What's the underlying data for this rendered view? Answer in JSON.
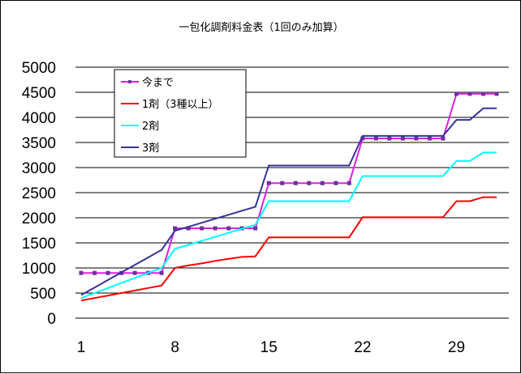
{
  "chart_data": {
    "type": "line",
    "title": "一包化調剤料金表（1回のみ加算）",
    "xlabel": "",
    "ylabel": "",
    "ylim": [
      0,
      5000
    ],
    "yticks": [
      0,
      500,
      1000,
      1500,
      2000,
      2500,
      3000,
      3500,
      4000,
      4500,
      5000
    ],
    "xlim": [
      1,
      32
    ],
    "xticks": [
      1,
      8,
      15,
      22,
      29
    ],
    "grid": "horizontal",
    "legend_position": "top-left",
    "x": [
      1,
      2,
      3,
      4,
      5,
      6,
      7,
      8,
      9,
      10,
      11,
      12,
      13,
      14,
      15,
      16,
      17,
      18,
      19,
      20,
      21,
      22,
      23,
      24,
      25,
      26,
      27,
      28,
      29,
      30,
      31,
      32
    ],
    "series": [
      {
        "name": "今まで",
        "color": "#e020e0",
        "marker": "square",
        "values": [
          900,
          900,
          900,
          900,
          900,
          900,
          900,
          1790,
          1790,
          1790,
          1790,
          1790,
          1790,
          1790,
          2690,
          2690,
          2690,
          2690,
          2690,
          2690,
          2690,
          3580,
          3580,
          3580,
          3580,
          3580,
          3580,
          3580,
          4470,
          4470,
          4470,
          4470
        ]
      },
      {
        "name": "1剤（3種以上）",
        "color": "#ff0000",
        "marker": "none",
        "values": [
          350,
          400,
          450,
          500,
          550,
          600,
          650,
          1000,
          1050,
          1090,
          1140,
          1180,
          1220,
          1230,
          1610,
          1610,
          1610,
          1610,
          1610,
          1610,
          1610,
          2010,
          2010,
          2010,
          2010,
          2010,
          2010,
          2010,
          2330,
          2330,
          2410,
          2410
        ]
      },
      {
        "name": "2剤",
        "color": "#00ffff",
        "marker": "none",
        "values": [
          400,
          500,
          600,
          700,
          800,
          900,
          1000,
          1380,
          1460,
          1540,
          1620,
          1700,
          1780,
          1860,
          2330,
          2330,
          2330,
          2330,
          2330,
          2330,
          2330,
          2830,
          2830,
          2830,
          2830,
          2830,
          2830,
          2830,
          3130,
          3130,
          3300,
          3300
        ]
      },
      {
        "name": "3剤",
        "color": "#333399",
        "marker": "none",
        "values": [
          460,
          610,
          760,
          910,
          1060,
          1210,
          1360,
          1740,
          1820,
          1900,
          1980,
          2060,
          2140,
          2220,
          3040,
          3040,
          3040,
          3040,
          3040,
          3040,
          3040,
          3630,
          3630,
          3630,
          3630,
          3630,
          3630,
          3630,
          3950,
          3950,
          4180,
          4180
        ]
      }
    ]
  }
}
